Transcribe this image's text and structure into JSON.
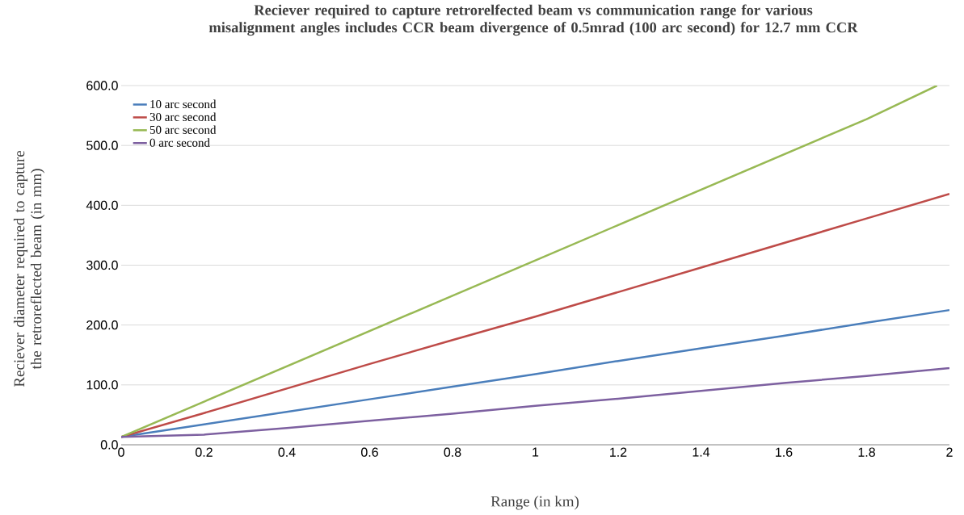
{
  "chart_data": {
    "type": "line",
    "title": "Reciever required to capture retrorelfected beam vs communication range for various misalignment angles includes CCR beam divergence of 0.5mrad (100 arc second) for 12.7 mm CCR",
    "xlabel": "Range (in km)",
    "ylabel": "Reciever diameter required to capture the retroreflected beam (in mm)",
    "x": [
      0,
      0.2,
      0.4,
      0.6,
      0.8,
      1,
      1.2,
      1.4,
      1.6,
      1.8,
      2
    ],
    "series": [
      {
        "name": "10 arc second",
        "color": "#4a7ebb",
        "values": [
          13,
          34,
          55,
          76,
          97,
          118,
          140,
          161,
          182,
          204,
          225
        ]
      },
      {
        "name": "30 arc second",
        "color": "#be4b48",
        "values": [
          13,
          53,
          94,
          135,
          175,
          214,
          255,
          296,
          337,
          378,
          419
        ]
      },
      {
        "name": "50 arc second",
        "color": "#98b954",
        "x": [
          0,
          0.2,
          0.4,
          0.6,
          0.8,
          1,
          1.2,
          1.4,
          1.6,
          1.8,
          1.97
        ],
        "values": [
          13,
          72,
          131,
          190,
          249,
          308,
          367,
          426,
          485,
          544,
          600
        ]
      },
      {
        "name": "0 arc second",
        "color": "#7d60a0",
        "values": [
          13,
          17,
          28,
          40,
          52,
          65,
          77,
          90,
          103,
          115,
          128
        ]
      }
    ],
    "xlim": [
      0,
      2
    ],
    "ylim": [
      0,
      600
    ],
    "xticks": [
      0,
      0.2,
      0.4,
      0.6,
      0.8,
      1,
      1.2,
      1.4,
      1.6,
      1.8,
      2
    ],
    "yticks": [
      {
        "value": 0,
        "label": "0.0"
      },
      {
        "value": 100,
        "label": "100.0"
      },
      {
        "value": 200,
        "label": "200.0"
      },
      {
        "value": 300,
        "label": "300.0"
      },
      {
        "value": 400,
        "label": "400.0"
      },
      {
        "value": 500,
        "label": "500.0"
      },
      {
        "value": 600,
        "label": "600.0"
      }
    ],
    "grid": "y",
    "legend": "top left",
    "marker": "none",
    "line_style": "solid"
  }
}
